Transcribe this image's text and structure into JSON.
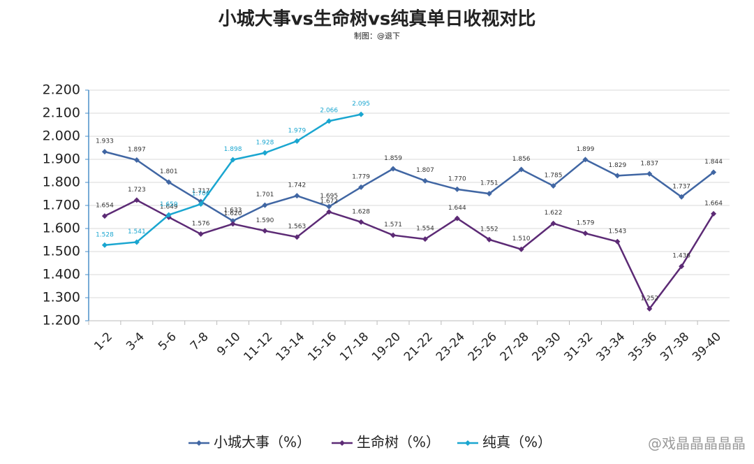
{
  "chart_data": {
    "type": "line",
    "title": "小城大事vs生命树vs纯真单日收视对比",
    "subtitle": "制图：@退下",
    "watermark": "@戏晶晶晶晶晶",
    "categories": [
      "1-2",
      "3-4",
      "5-6",
      "7-8",
      "9-10",
      "11-12",
      "13-14",
      "15-16",
      "17-18",
      "19-20",
      "21-22",
      "23-24",
      "25-26",
      "27-28",
      "29-30",
      "31-32",
      "33-34",
      "35-36",
      "37-38",
      "39-40"
    ],
    "series": [
      {
        "name": "小城大事（%）",
        "color": "#4066a3",
        "values": [
          1.933,
          1.897,
          1.801,
          1.717,
          1.633,
          1.701,
          1.742,
          1.695,
          1.779,
          1.859,
          1.807,
          1.77,
          1.751,
          1.856,
          1.785,
          1.899,
          1.829,
          1.837,
          1.737,
          1.844
        ],
        "value_labels": [
          "1.933",
          "1.897",
          "1.801",
          "1.717",
          "1.633",
          "1.701",
          "1.742",
          "1.695",
          "1.779",
          "1.859",
          "1.807",
          "1.770",
          "1.751",
          "1.856",
          "1.785",
          "1.899",
          "1.829",
          "1.837",
          "1.737",
          "1.844"
        ]
      },
      {
        "name": "生命树（%）",
        "color": "#5c2a75",
        "values": [
          1.654,
          1.723,
          1.649,
          1.576,
          1.62,
          1.59,
          1.563,
          1.672,
          1.628,
          1.571,
          1.554,
          1.644,
          1.552,
          1.51,
          1.622,
          1.579,
          1.543,
          1.252,
          1.436,
          1.664
        ],
        "value_labels": [
          "1.654",
          "1.723",
          "1.649",
          "1.576",
          "1.620",
          "1.590",
          "1.563",
          "1.672",
          "1.628",
          "1.571",
          "1.554",
          "1.644",
          "1.552",
          "1.510",
          "1.622",
          "1.579",
          "1.543",
          "1.252",
          "1.436",
          "1.664"
        ]
      },
      {
        "name": "纯真（%）",
        "color": "#1aa6d0",
        "values": [
          1.528,
          1.541,
          1.659,
          1.706,
          1.898,
          1.928,
          1.979,
          2.066,
          2.095,
          null,
          null,
          null,
          null,
          null,
          null,
          null,
          null,
          null,
          null,
          null
        ],
        "value_labels": [
          "1.528",
          "1.541",
          "1.659",
          "1.706",
          "1.898",
          "1.928",
          "1.979",
          "2.066",
          "2.095",
          null,
          null,
          null,
          null,
          null,
          null,
          null,
          null,
          null,
          null,
          null
        ]
      }
    ],
    "ylim": [
      1.2,
      2.2
    ],
    "yticks": [
      {
        "value": 1.2,
        "label": "1.200"
      },
      {
        "value": 1.3,
        "label": "1.300"
      },
      {
        "value": 1.4,
        "label": "1.400"
      },
      {
        "value": 1.5,
        "label": "1.500"
      },
      {
        "value": 1.6,
        "label": "1.600"
      },
      {
        "value": 1.7,
        "label": "1.700"
      },
      {
        "value": 1.8,
        "label": "1.800"
      },
      {
        "value": 1.9,
        "label": "1.900"
      },
      {
        "value": 2.0,
        "label": "2.000"
      },
      {
        "value": 2.1,
        "label": "2.100"
      },
      {
        "value": 2.2,
        "label": "2.200"
      }
    ],
    "grid": true,
    "legend": "bottom"
  }
}
